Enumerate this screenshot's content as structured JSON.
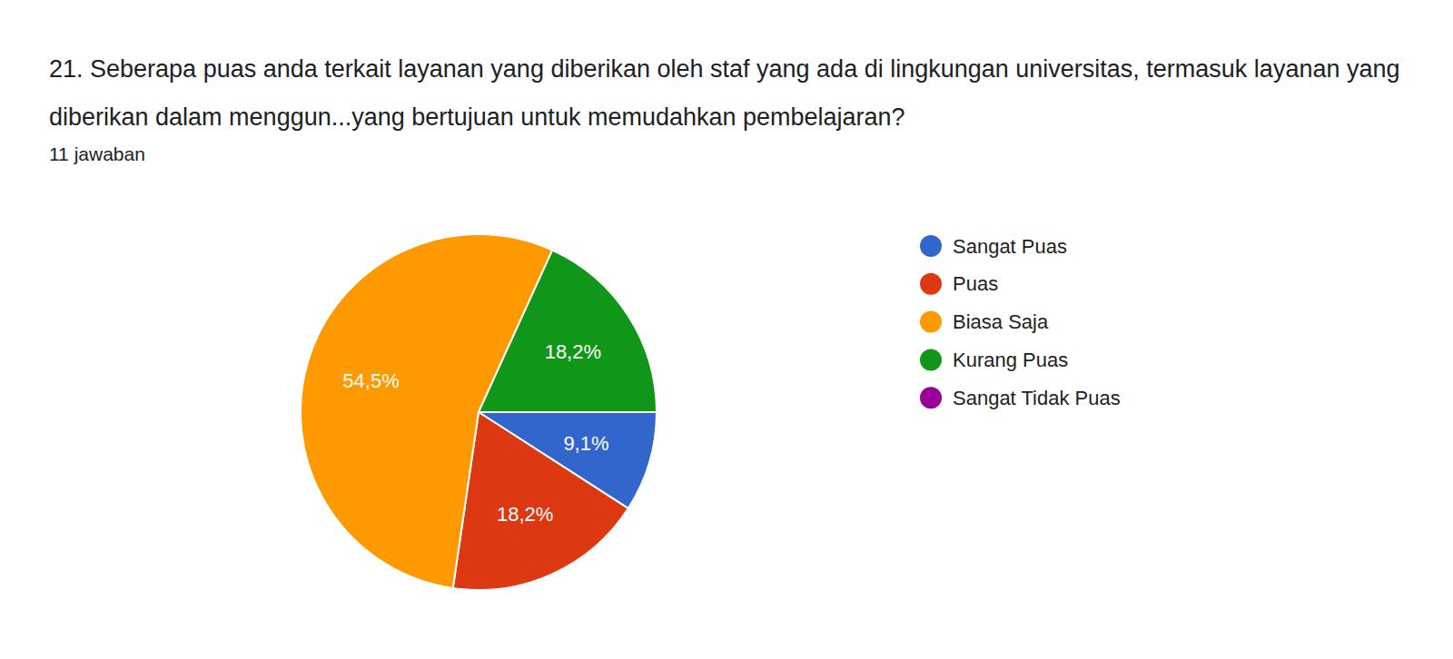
{
  "chart_data": {
    "type": "pie",
    "title": "21.  Seberapa puas anda terkait layanan yang diberikan oleh staf yang ada di lingkungan universitas, termasuk layanan yang diberikan dalam menggun...yang bertujuan untuk memudahkan pembelajaran?",
    "subtitle": "11 jawaban",
    "categories": [
      "Sangat Puas",
      "Puas",
      "Biasa Saja",
      "Kurang Puas",
      "Sangat Tidak Puas"
    ],
    "values": [
      9.1,
      18.2,
      54.5,
      18.2,
      0
    ],
    "value_labels": [
      "9,1%",
      "18,2%",
      "54,5%",
      "18,2%",
      null
    ],
    "colors": [
      "#3366cc",
      "#dc3912",
      "#ff9900",
      "#109618",
      "#990099"
    ],
    "data_labels": true,
    "legend": "right"
  }
}
